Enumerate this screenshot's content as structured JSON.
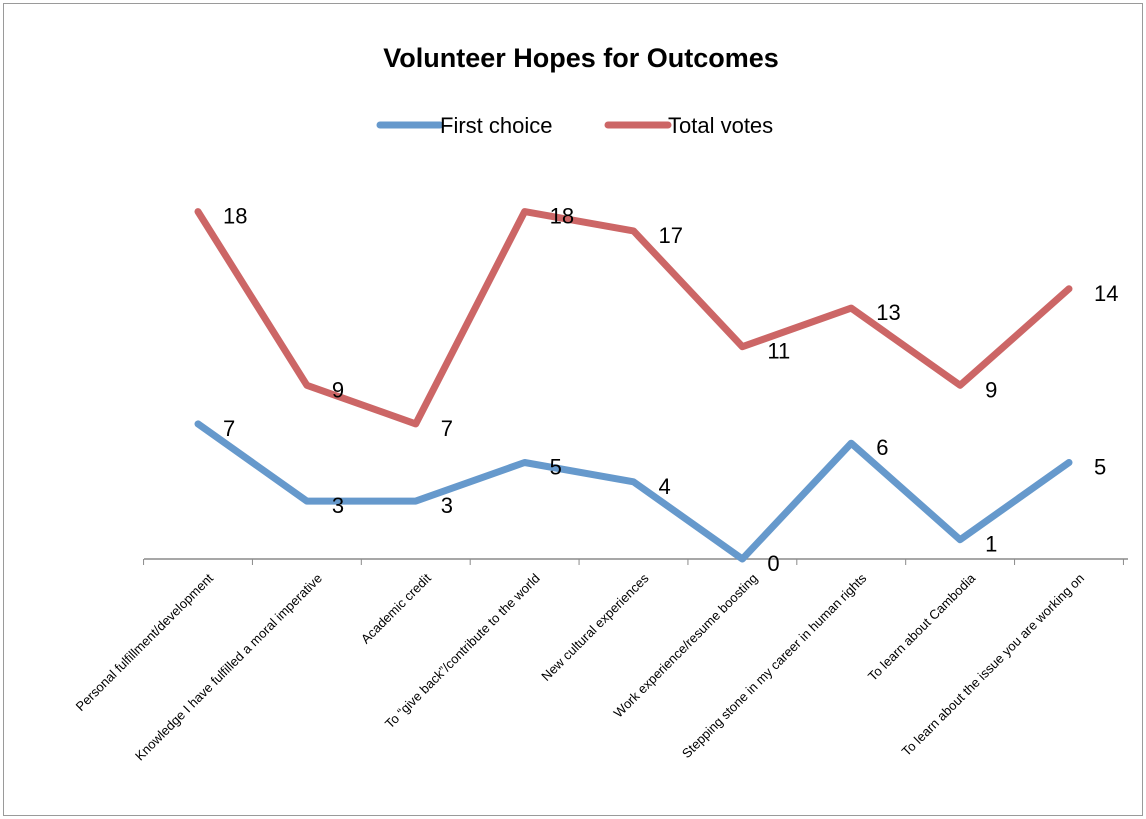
{
  "chart_data": {
    "type": "line",
    "title": "Volunteer Hopes for Outcomes",
    "categories": [
      "Personal fulfillment/development",
      "Knowledge I have fulfilled a moral imperative",
      "Academic credit",
      "To “give back”/contribute to the world",
      "New cultural experiences",
      "Work experience/resume boosting",
      "Stepping stone in my career in human rights",
      "To learn about Cambodia",
      "To learn about the issue you are working on"
    ],
    "series": [
      {
        "name": "First choice",
        "color": "#6699cc",
        "values": [
          7,
          3,
          3,
          5,
          4,
          0,
          6,
          1,
          5
        ]
      },
      {
        "name": "Total votes",
        "color": "#cc6666",
        "values": [
          18,
          9,
          7,
          18,
          17,
          11,
          13,
          9,
          14
        ]
      }
    ],
    "ylim": [
      0,
      20
    ],
    "grid": false,
    "legend_position": "top",
    "xlabel": "",
    "ylabel": ""
  }
}
